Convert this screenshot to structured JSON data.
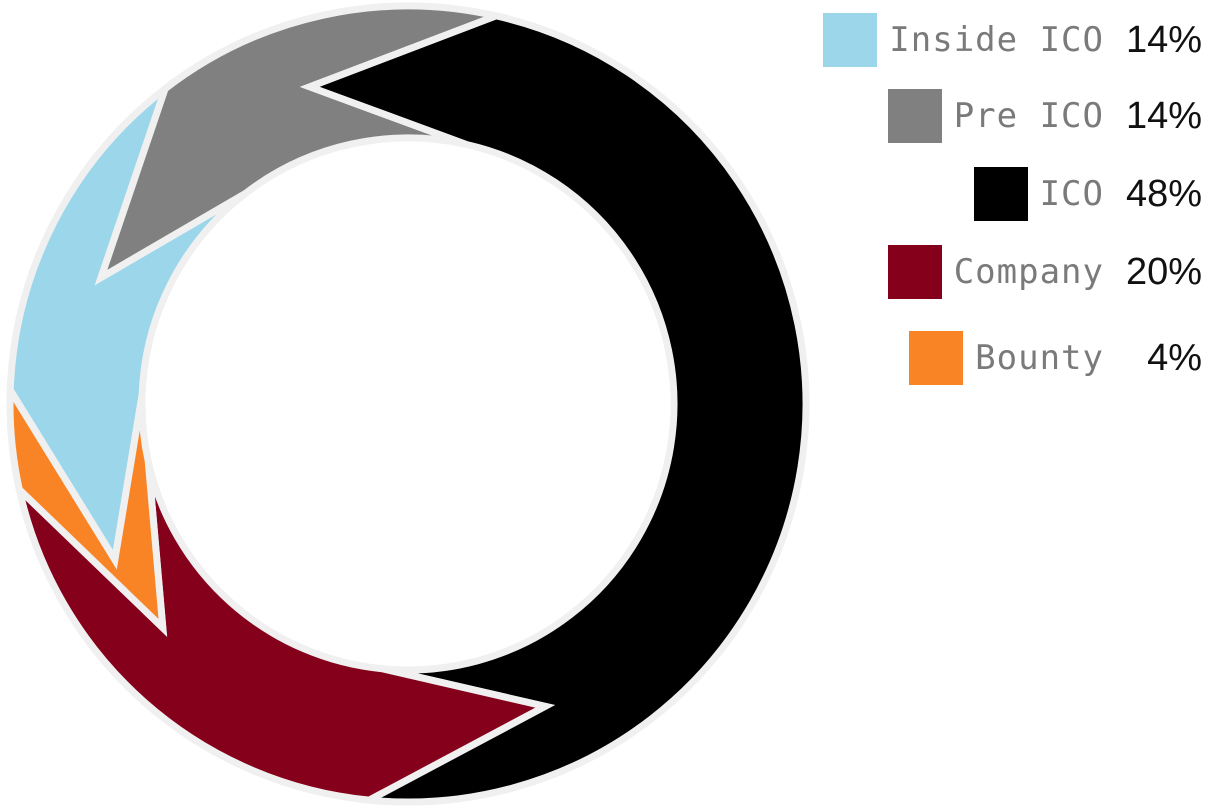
{
  "chart_data": {
    "type": "pie",
    "variant": "donut",
    "slices": [
      {
        "label": "Inside ICO",
        "value": 14,
        "display": "14%",
        "color": "#9bd6ea"
      },
      {
        "label": "Pre ICO",
        "value": 14,
        "display": "14%",
        "color": "#808080"
      },
      {
        "label": "ICO",
        "value": 48,
        "display": "48%",
        "color": "#000000"
      },
      {
        "label": "Company",
        "value": 20,
        "display": "20%",
        "color": "#85001a"
      },
      {
        "label": "Bounty",
        "value": 4,
        "display": "4%",
        "color": "#f98426"
      }
    ],
    "legend_position": "right",
    "separator_color": "#f0f0f0"
  }
}
